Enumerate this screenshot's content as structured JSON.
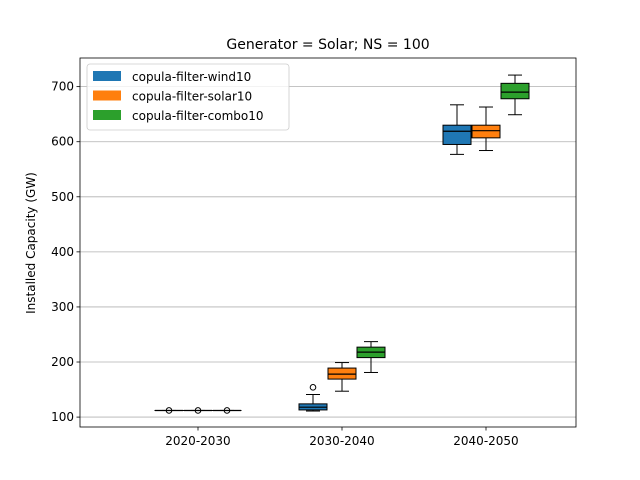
{
  "chart_data": {
    "type": "box",
    "title": "Generator = Solar; NS = 100",
    "xlabel": "",
    "ylabel": "Installed Capacity (GW)",
    "categories": [
      "2020-2030",
      "2030-2040",
      "2040-2050"
    ],
    "ylim": [
      82,
      752
    ],
    "yticks": [
      100,
      200,
      300,
      400,
      500,
      600,
      700
    ],
    "grid": "y",
    "legend_position": "top-left",
    "series": [
      {
        "name": "copula-filter-wind10",
        "color": "#1f77b4",
        "boxes": [
          {
            "whisker_low": 112,
            "q1": 112,
            "median": 112,
            "q3": 112,
            "whisker_high": 112,
            "outliers": [
              112
            ]
          },
          {
            "whisker_low": 111,
            "q1": 113,
            "median": 118,
            "q3": 124,
            "whisker_high": 141,
            "outliers": [
              154
            ]
          },
          {
            "whisker_low": 577,
            "q1": 595,
            "median": 619,
            "q3": 630,
            "whisker_high": 667,
            "outliers": []
          }
        ]
      },
      {
        "name": "copula-filter-solar10",
        "color": "#ff7f0e",
        "boxes": [
          {
            "whisker_low": 112,
            "q1": 112,
            "median": 112,
            "q3": 112,
            "whisker_high": 112,
            "outliers": [
              112
            ]
          },
          {
            "whisker_low": 147,
            "q1": 169,
            "median": 178,
            "q3": 189,
            "whisker_high": 199,
            "outliers": []
          },
          {
            "whisker_low": 584,
            "q1": 607,
            "median": 620,
            "q3": 630,
            "whisker_high": 663,
            "outliers": []
          }
        ]
      },
      {
        "name": "copula-filter-combo10",
        "color": "#2ca02c",
        "boxes": [
          {
            "whisker_low": 112,
            "q1": 112,
            "median": 112,
            "q3": 112,
            "whisker_high": 112,
            "outliers": [
              112
            ]
          },
          {
            "whisker_low": 181,
            "q1": 208,
            "median": 218,
            "q3": 227,
            "whisker_high": 237,
            "outliers": []
          },
          {
            "whisker_low": 649,
            "q1": 678,
            "median": 690,
            "q3": 706,
            "whisker_high": 721,
            "outliers": []
          }
        ]
      }
    ]
  }
}
